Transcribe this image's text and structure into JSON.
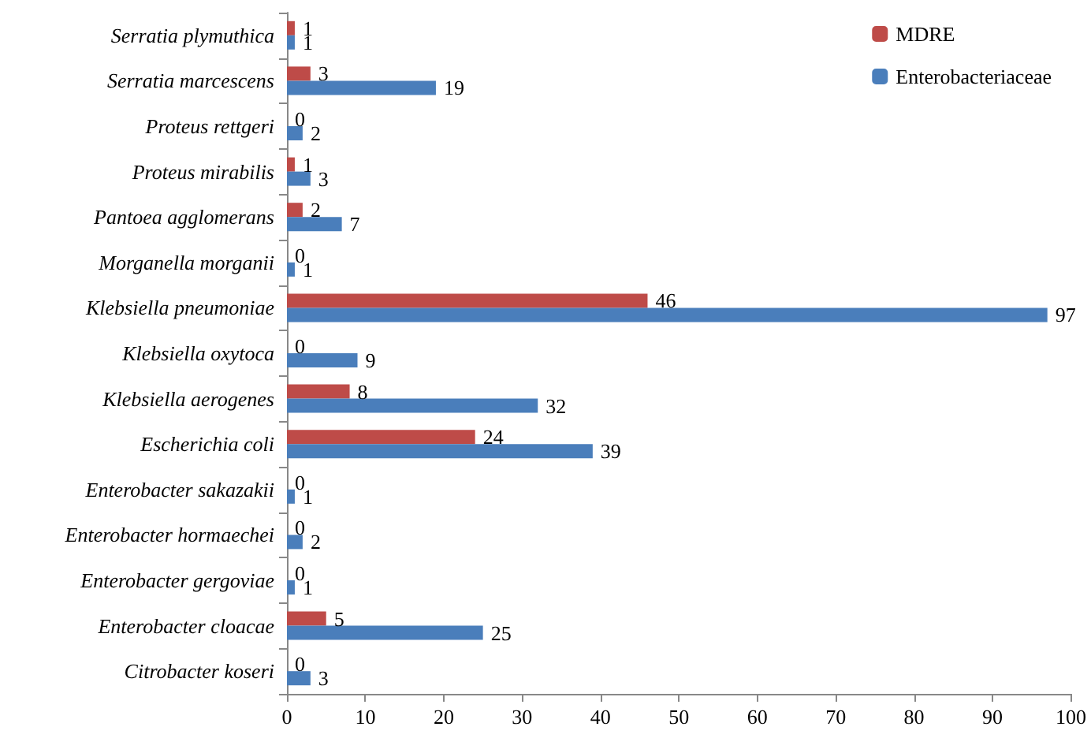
{
  "chart_data": {
    "type": "bar",
    "orientation": "horizontal",
    "categories": [
      "Serratia plymuthica",
      "Serratia marcescens",
      "Proteus rettgeri",
      "Proteus mirabilis",
      "Pantoea agglomerans",
      "Morganella morganii",
      "Klebsiella pneumoniae",
      "Klebsiella oxytoca",
      "Klebsiella aerogenes",
      "Escherichia coli",
      "Enterobacter sakazakii",
      "Enterobacter hormaechei",
      "Enterobacter gergoviae",
      "Enterobacter cloacae",
      "Citrobacter koseri"
    ],
    "series": [
      {
        "name": "MDRE",
        "color": "#be4b48",
        "values": [
          1,
          3,
          0,
          1,
          2,
          0,
          46,
          0,
          8,
          24,
          0,
          0,
          0,
          5,
          0
        ]
      },
      {
        "name": "Enterobacteriaceae",
        "color": "#4a7ebb",
        "values": [
          1,
          19,
          2,
          3,
          7,
          1,
          97,
          9,
          32,
          39,
          1,
          2,
          1,
          25,
          3
        ]
      }
    ],
    "xlim": [
      0,
      100
    ],
    "xticks": [
      0,
      10,
      20,
      30,
      40,
      50,
      60,
      70,
      80,
      90,
      100
    ],
    "data_labels": true,
    "grid": false,
    "legend": "top right"
  }
}
